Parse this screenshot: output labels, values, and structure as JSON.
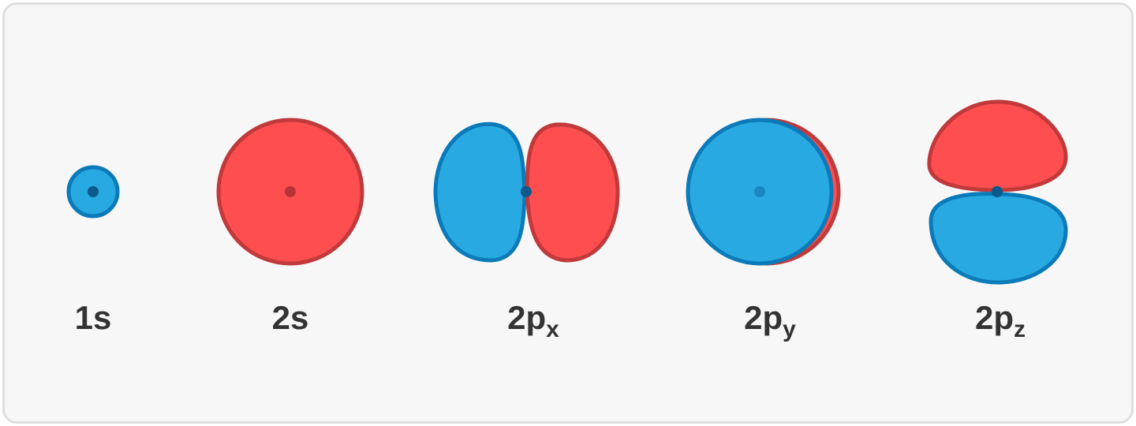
{
  "diagram": {
    "colors": {
      "positive_fill": "#ff4e50",
      "positive_stroke": "#c0393b",
      "negative_fill": "#29a9e1",
      "negative_stroke": "#0a7ab8",
      "nucleus_dark": "#0b5a8a",
      "nucleus_red": "#b83336",
      "panel_bg": "#f7f7f7",
      "panel_border": "#dedede",
      "label_color": "#333333"
    },
    "orbitals": [
      {
        "id": "1s",
        "main": "1",
        "letter": "s",
        "sub": ""
      },
      {
        "id": "2s",
        "main": "2",
        "letter": "s",
        "sub": ""
      },
      {
        "id": "2px",
        "main": "2",
        "letter": "p",
        "sub": "x"
      },
      {
        "id": "2py",
        "main": "2",
        "letter": "p",
        "sub": "y"
      },
      {
        "id": "2pz",
        "main": "2",
        "letter": "p",
        "sub": "z"
      }
    ]
  }
}
